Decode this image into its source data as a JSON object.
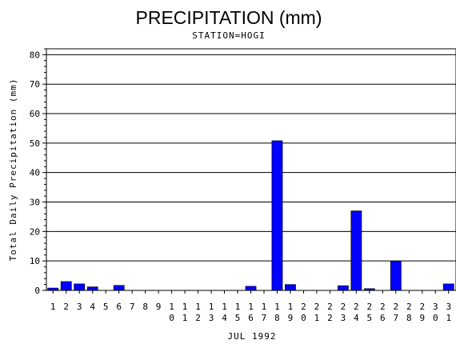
{
  "chart_data": {
    "type": "bar",
    "title": "PRECIPITATION (mm)",
    "subtitle": "STATION=HOGI",
    "xlabel": "JUL 1992",
    "ylabel": "Total Daily Precipitation (mm)",
    "ylim": [
      0,
      82
    ],
    "yticks": [
      0,
      10,
      20,
      30,
      40,
      50,
      60,
      70,
      80
    ],
    "grid": true,
    "bar_color": "#0000ff",
    "categories": [
      "1",
      "2",
      "3",
      "4",
      "5",
      "6",
      "7",
      "8",
      "9",
      "10",
      "11",
      "12",
      "13",
      "14",
      "15",
      "16",
      "17",
      "18",
      "19",
      "20",
      "21",
      "22",
      "23",
      "24",
      "25",
      "26",
      "27",
      "28",
      "29",
      "30",
      "31"
    ],
    "values": [
      0.8,
      3.0,
      2.2,
      1.2,
      0,
      1.7,
      0,
      0,
      0,
      0,
      0,
      0,
      0,
      0,
      0,
      1.4,
      0,
      50.8,
      2.0,
      0,
      0,
      0,
      1.6,
      27.0,
      0.6,
      0,
      10.0,
      0,
      0,
      0,
      2.2
    ]
  }
}
